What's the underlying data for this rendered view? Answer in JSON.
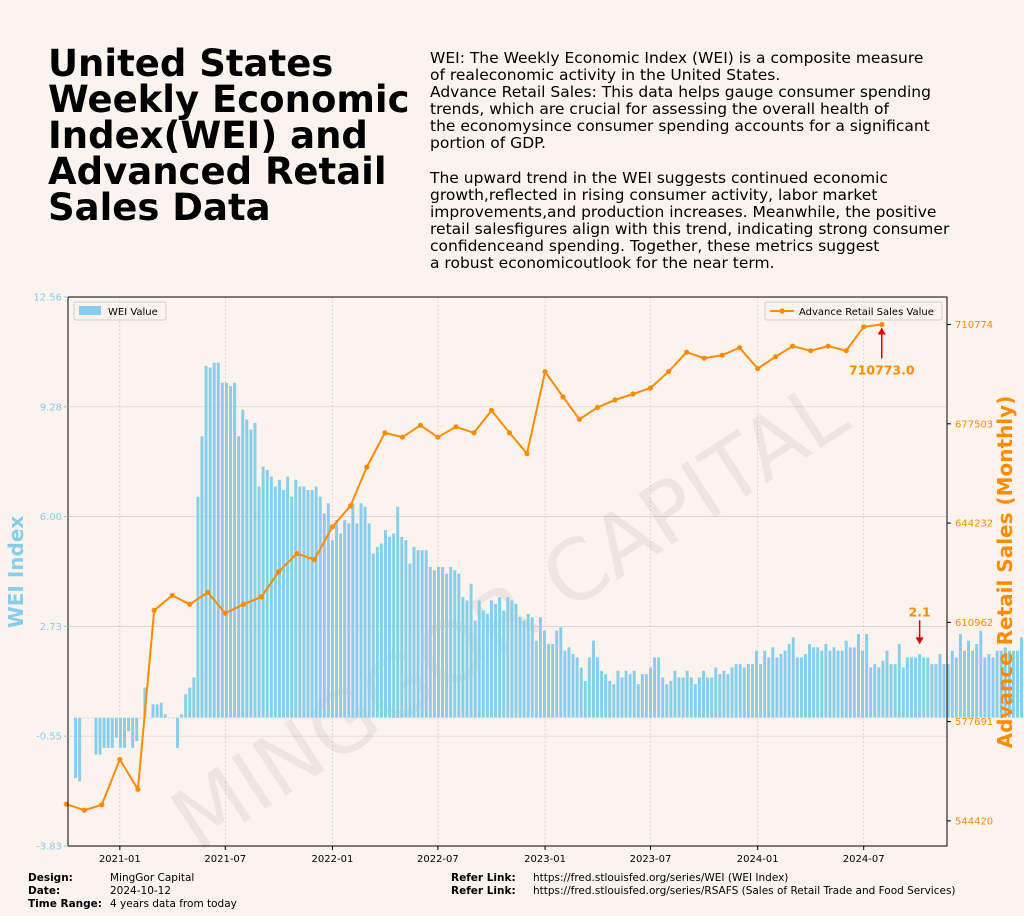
{
  "header": {
    "title": "United States\nWeekly Economic\nIndex(WEI) and\nAdvanced Retail\nSales Data",
    "desc1": "WEI: The Weekly Economic Index (WEI) is a composite measure\nof realeconomic activity in the United States.\nAdvance Retail Sales: This data helps gauge consumer spending\ntrends, which are crucial for assessing the overall health of\nthe economysince consumer spending accounts for a significant\nportion of GDP.",
    "desc2": "The upward trend in the WEI suggests continued economic\ngrowth,reflected in rising consumer activity, labor market\nimprovements,and production increases. Meanwhile, the positive\nretail salesfigures align with this trend, indicating strong consumer\nconfidenceand spending. Together, these metrics suggest\na robust economicoutlook for the near term."
  },
  "watermark": "MINGGOR CAPITAL",
  "colors": {
    "wei": "#87ceeb",
    "retail": "#ff8c00",
    "annotation": "#e00000",
    "background": "#fdf3ee"
  },
  "footer": {
    "design_label": "Design:",
    "design_value": "MingGor Capital",
    "date_label": "Date:",
    "date_value": "2024-10-12",
    "range_label": "Time Range:",
    "range_value": "4 years data from today",
    "ref1_label": "Refer Link:",
    "ref1_value": "https://fred.stlouisfed.org/series/WEI (WEI Index)",
    "ref2_label": "Refer Link:",
    "ref2_value": "https://fred.stlouisfed.org/series/RSAFS (Sales of Retail Trade and Food Services)"
  },
  "chart_data": {
    "type": "bar+line",
    "x_type": "date",
    "xlim": [
      "2020-10-04",
      "2024-11-21"
    ],
    "x_ticks": [
      "2021-01",
      "2021-07",
      "2022-01",
      "2022-07",
      "2023-01",
      "2023-07",
      "2024-01",
      "2024-07"
    ],
    "grid": true,
    "left_axis": {
      "label": "WEI Index",
      "ylim": [
        -3.83,
        12.56
      ],
      "ticks": [
        -3.83,
        -0.55,
        2.73,
        6.0,
        9.28,
        12.56
      ]
    },
    "right_axis": {
      "label": "Advance Retail Sales (Monthly)",
      "ylim": [
        536000,
        720000
      ],
      "ticks": [
        544420,
        577691,
        610962,
        644232,
        677503,
        710774
      ]
    },
    "wei_series": {
      "name": "WEI Value",
      "start": "2020-10-17",
      "interval_days": 7,
      "values": [
        -1.8,
        -1.9,
        0.0,
        0.0,
        0.0,
        -1.1,
        -1.1,
        -0.9,
        -0.9,
        -0.9,
        -0.6,
        -0.9,
        -0.9,
        -0.4,
        -0.9,
        -0.7,
        0.0,
        0.9,
        0.0,
        0.4,
        0.4,
        0.45,
        0.1,
        0.0,
        0.0,
        -0.9,
        0.1,
        0.7,
        0.9,
        1.2,
        6.6,
        8.4,
        10.5,
        10.45,
        10.6,
        10.6,
        10.0,
        10.0,
        9.9,
        10.0,
        8.4,
        9.2,
        8.9,
        8.6,
        8.8,
        6.9,
        7.5,
        7.4,
        7.2,
        6.9,
        7.1,
        6.8,
        7.2,
        6.6,
        7.1,
        6.9,
        6.9,
        6.8,
        6.8,
        6.9,
        6.6,
        6.1,
        6.4,
        5.3,
        5.9,
        5.5,
        5.9,
        5.8,
        6.4,
        5.8,
        6.4,
        6.3,
        5.8,
        4.9,
        5.1,
        5.2,
        5.6,
        5.4,
        5.5,
        6.3,
        5.4,
        5.3,
        4.6,
        5.1,
        5.0,
        5.0,
        5.0,
        4.5,
        4.4,
        4.5,
        4.5,
        4.3,
        4.5,
        4.4,
        4.3,
        3.6,
        3.5,
        4.0,
        2.9,
        3.5,
        3.2,
        3.1,
        3.5,
        3.4,
        3.6,
        3.2,
        3.6,
        3.5,
        3.4,
        3.0,
        2.9,
        3.1,
        3.0,
        2.3,
        3.0,
        2.6,
        2.2,
        2.2,
        2.6,
        2.7,
        2.0,
        2.1,
        1.9,
        1.8,
        1.5,
        1.1,
        1.8,
        2.3,
        1.8,
        1.4,
        1.3,
        1.1,
        1.0,
        1.4,
        1.2,
        1.4,
        1.3,
        1.4,
        1.0,
        1.3,
        1.3,
        1.5,
        1.8,
        1.8,
        1.2,
        1.0,
        1.1,
        1.4,
        1.2,
        1.2,
        1.4,
        1.2,
        1.0,
        1.2,
        1.4,
        1.2,
        1.2,
        1.5,
        1.3,
        1.4,
        1.3,
        1.5,
        1.6,
        1.6,
        1.5,
        1.6,
        1.6,
        2.0,
        1.6,
        2.0,
        1.8,
        2.1,
        1.8,
        1.9,
        2.0,
        2.2,
        2.4,
        1.8,
        1.8,
        1.9,
        2.2,
        2.1,
        2.1,
        2.0,
        2.2,
        2.0,
        2.1,
        2.0,
        2.0,
        2.3,
        2.1,
        2.1,
        2.5,
        2.0,
        2.5,
        1.5,
        1.6,
        1.5,
        1.7,
        2.0,
        1.6,
        1.6,
        2.2,
        1.5,
        1.8,
        1.8,
        1.8,
        1.9,
        1.8,
        1.8,
        1.6,
        1.6,
        1.9,
        1.6,
        1.6,
        2.0,
        1.8,
        2.5,
        2.0,
        2.3,
        2.0,
        2.2,
        2.6,
        1.8,
        1.9,
        1.8,
        2.0,
        2.0,
        2.1,
        2.0,
        2.0,
        2.0,
        2.4,
        2.0,
        2.3,
        2.0,
        2.1,
        2.1,
        2.1
      ]
    },
    "retail_series": {
      "name": "Advance Retail Sales Value",
      "points": [
        [
          "2020-10-01",
          550000
        ],
        [
          "2020-11-01",
          548000
        ],
        [
          "2020-12-01",
          549800
        ],
        [
          "2021-01-01",
          565000
        ],
        [
          "2021-02-01",
          555000
        ],
        [
          "2021-03-01",
          615000
        ],
        [
          "2021-04-01",
          620000
        ],
        [
          "2021-05-01",
          617000
        ],
        [
          "2021-06-01",
          621000
        ],
        [
          "2021-07-01",
          614000
        ],
        [
          "2021-08-01",
          617000
        ],
        [
          "2021-09-01",
          619500
        ],
        [
          "2021-10-01",
          628000
        ],
        [
          "2021-11-01",
          634000
        ],
        [
          "2021-12-01",
          632000
        ],
        [
          "2022-01-01",
          643000
        ],
        [
          "2022-02-01",
          650000
        ],
        [
          "2022-03-01",
          663000
        ],
        [
          "2022-04-01",
          674500
        ],
        [
          "2022-05-01",
          673000
        ],
        [
          "2022-06-01",
          677000
        ],
        [
          "2022-07-01",
          673000
        ],
        [
          "2022-08-01",
          676500
        ],
        [
          "2022-09-01",
          674500
        ],
        [
          "2022-10-01",
          682000
        ],
        [
          "2022-11-01",
          674500
        ],
        [
          "2022-12-01",
          667500
        ],
        [
          "2023-01-01",
          695000
        ],
        [
          "2023-02-01",
          686500
        ],
        [
          "2023-03-01",
          679000
        ],
        [
          "2023-04-01",
          683000
        ],
        [
          "2023-05-01",
          685500
        ],
        [
          "2023-06-01",
          687500
        ],
        [
          "2023-07-01",
          689500
        ],
        [
          "2023-08-01",
          695000
        ],
        [
          "2023-09-01",
          701500
        ],
        [
          "2023-10-01",
          699500
        ],
        [
          "2023-11-01",
          700500
        ],
        [
          "2023-12-01",
          703000
        ],
        [
          "2024-01-01",
          696000
        ],
        [
          "2024-02-01",
          700000
        ],
        [
          "2024-03-01",
          703500
        ],
        [
          "2024-04-01",
          702000
        ],
        [
          "2024-05-01",
          703500
        ],
        [
          "2024-06-01",
          702000
        ],
        [
          "2024-07-01",
          710000
        ],
        [
          "2024-08-01",
          710773
        ]
      ]
    },
    "annotations": [
      {
        "series": "retail",
        "date": "2024-08-01",
        "value": 710773,
        "label": "710773.0"
      },
      {
        "series": "wei",
        "date": "2024-10-05",
        "value": 2.1,
        "label": "2.1"
      }
    ]
  }
}
